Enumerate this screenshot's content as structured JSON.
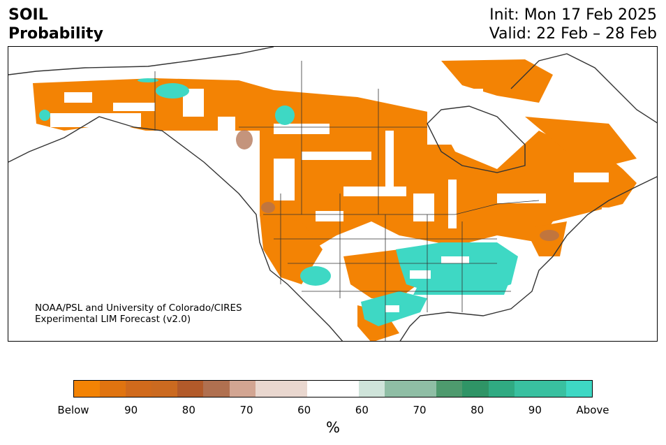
{
  "header": {
    "title_line1": "SOIL",
    "title_line2": "Probability",
    "init": "Init: Mon 17 Feb 2025",
    "valid": "Valid: 22 Feb – 28 Feb"
  },
  "credit": {
    "line1": "NOAA/PSL and University of Colorado/CIRES",
    "line2": "Experimental LIM Forecast (v2.0)"
  },
  "colorbar": {
    "colors": [
      "#f38304",
      "#e07410",
      "#d06a1c",
      "#cb6a20",
      "#b25a2a",
      "#b07050",
      "#d2a592",
      "#e9d7cf",
      "#e9d7cf",
      "#ffffff",
      "#ffffff",
      "#cfe4da",
      "#8fbea5",
      "#8fbea5",
      "#4e9a6e",
      "#2f9466",
      "#30aa82",
      "#39c0a0",
      "#39c0a0",
      "#3ed8c4"
    ],
    "ticks": [
      "Below",
      "90",
      "80",
      "70",
      "60",
      "60",
      "70",
      "80",
      "90",
      "Above"
    ],
    "unit": "%"
  },
  "legend_colors": {
    "below": "#f38304",
    "above": "#3ed8c4",
    "coast": "#333333"
  }
}
